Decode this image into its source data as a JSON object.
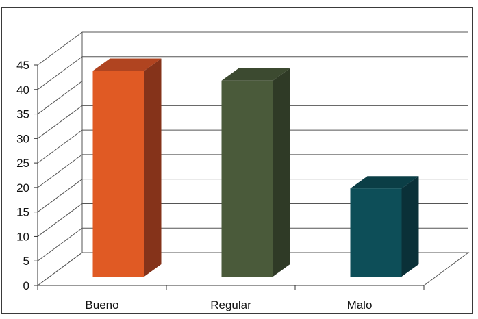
{
  "chart_data": {
    "type": "bar",
    "categories": [
      "Bueno",
      "Regular",
      "Malo"
    ],
    "values": [
      42,
      40,
      18
    ],
    "ylim": [
      0,
      45
    ],
    "yticks": [
      "0",
      "5",
      "10",
      "15",
      "20",
      "25",
      "30",
      "35",
      "40",
      "45"
    ],
    "grid": true,
    "three_d": true,
    "colors": [
      {
        "front": "#E05A24",
        "side": "#85331A",
        "top": "#B04420"
      },
      {
        "front": "#4A5A3A",
        "side": "#2F3A26",
        "top": "#3C4A30"
      },
      {
        "front": "#0D4E58",
        "side": "#0A3038",
        "top": "#0B3E46"
      }
    ]
  }
}
